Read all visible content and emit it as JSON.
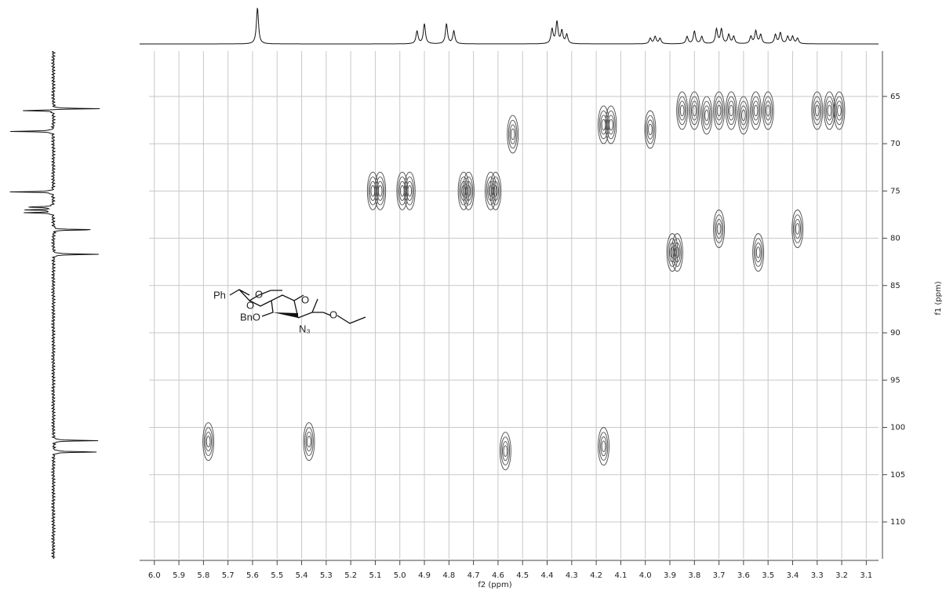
{
  "chart_data": {
    "type": "contour",
    "x_label": "f2 (ppm)",
    "y_label": "f1 (ppm)",
    "xlim": [
      6.06,
      3.05
    ],
    "ylim": [
      60.2,
      113.9
    ],
    "xticks": [
      {
        "value": 6.0,
        "label": "6.0"
      },
      5.9,
      5.8,
      5.7,
      5.6,
      5.5,
      5.4,
      5.3,
      5.2,
      5.1,
      {
        "value": 5.0,
        "label": "5.0"
      },
      4.9,
      4.8,
      4.7,
      4.6,
      4.5,
      4.4,
      4.3,
      4.2,
      4.1,
      {
        "value": 4.0,
        "label": "4.0"
      },
      3.9,
      3.8,
      3.7,
      3.6,
      3.5,
      3.4,
      3.3,
      3.2,
      3.1
    ],
    "yticks": [
      65,
      70,
      75,
      80,
      85,
      90,
      95,
      100,
      105,
      110
    ],
    "grid": true,
    "color": "#4a4a4a",
    "x": [
      5.11,
      5.08,
      4.99,
      4.96,
      4.74,
      4.72,
      4.63,
      4.61,
      4.54,
      4.17,
      4.14,
      3.98,
      3.85,
      3.8,
      3.75,
      3.7,
      3.65,
      3.6,
      3.55,
      3.5,
      3.3,
      3.25,
      3.21,
      3.89,
      3.87,
      3.7,
      3.54,
      3.38,
      5.78,
      5.37,
      4.57,
      4.17
    ],
    "values": [
      75,
      75,
      75,
      75,
      75,
      75,
      75,
      75,
      69,
      68,
      68,
      68.5,
      66.5,
      66.5,
      67,
      66.5,
      66.5,
      67,
      66.5,
      66.5,
      66.5,
      66.5,
      66.5,
      81.5,
      81.5,
      79,
      81.5,
      79,
      101.5,
      101.5,
      102.5,
      102
    ],
    "top_projection": {
      "x": [
        5.58,
        4.93,
        4.9,
        4.81,
        4.78,
        4.38,
        4.36,
        4.34,
        4.32,
        3.98,
        3.96,
        3.94,
        3.83,
        3.8,
        3.77,
        3.71,
        3.69,
        3.66,
        3.64,
        3.57,
        3.55,
        3.53,
        3.47,
        3.45,
        3.42,
        3.4,
        3.38
      ],
      "values": [
        1.0,
        0.35,
        0.55,
        0.55,
        0.35,
        0.4,
        0.6,
        0.35,
        0.25,
        0.15,
        0.2,
        0.15,
        0.2,
        0.35,
        0.2,
        0.4,
        0.4,
        0.25,
        0.2,
        0.2,
        0.35,
        0.25,
        0.25,
        0.3,
        0.2,
        0.2,
        0.15
      ]
    },
    "left_projection": {
      "y": [
        66.3,
        66.5,
        68.7,
        75.1,
        76.7,
        77.0,
        77.3,
        79.1,
        81.7,
        101.4,
        102.6
      ],
      "values": [
        1.0,
        -0.72,
        -0.95,
        -0.93,
        -0.62,
        -0.62,
        -0.62,
        0.9,
        1.0,
        1.0,
        1.0
      ]
    },
    "structure_labels": [
      "Ph",
      "O",
      "O",
      "BnO",
      "O",
      "N₃",
      "O"
    ]
  }
}
